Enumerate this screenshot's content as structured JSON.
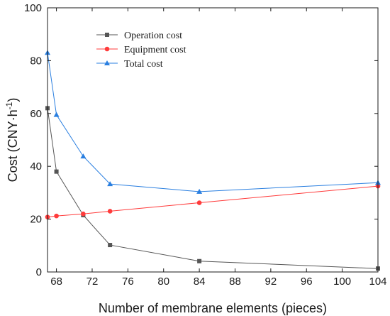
{
  "chart_data": {
    "type": "line",
    "x": [
      67,
      68,
      71,
      74,
      84,
      104
    ],
    "xlabel": "Number of membrane elements (pieces)",
    "ylabel": "Cost (CNY·h",
    "ylabel_sup": "-1",
    "ylabel_close": ")",
    "xlim": [
      67,
      104
    ],
    "ylim": [
      0,
      100
    ],
    "xticks": [
      68,
      72,
      76,
      80,
      84,
      88,
      92,
      96,
      100,
      104
    ],
    "yticks": [
      0,
      20,
      40,
      60,
      80,
      100
    ],
    "grid": false,
    "legend_position": "top-center",
    "series": [
      {
        "name": "Operation cost",
        "values": [
          62,
          38,
          21.5,
          10.2,
          4.1,
          1.3
        ],
        "color": "#555555",
        "marker": "square"
      },
      {
        "name": "Equipment cost",
        "values": [
          20.8,
          21.2,
          22,
          23,
          26.2,
          32.5
        ],
        "color": "#ff3b3b",
        "marker": "circle"
      },
      {
        "name": "Total cost",
        "values": [
          83,
          59.5,
          43.8,
          33.3,
          30.4,
          33.8
        ],
        "color": "#2a7fe0",
        "marker": "triangle"
      }
    ]
  }
}
